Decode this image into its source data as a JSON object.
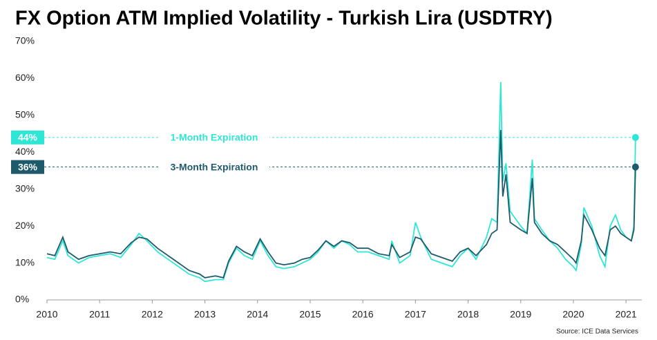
{
  "chart_data": {
    "type": "line",
    "title": "FX Option ATM Implied Volatility - Turkish Lira (USDTRY)",
    "source": "Source:  ICE Data Services",
    "x": [
      2010.0,
      2010.15,
      2010.3,
      2010.4,
      2010.6,
      2010.8,
      2011.0,
      2011.2,
      2011.4,
      2011.6,
      2011.75,
      2011.9,
      2012.1,
      2012.3,
      2012.5,
      2012.7,
      2012.9,
      2013.0,
      2013.2,
      2013.35,
      2013.45,
      2013.6,
      2013.75,
      2013.9,
      2014.05,
      2014.2,
      2014.35,
      2014.5,
      2014.7,
      2014.85,
      2015.0,
      2015.15,
      2015.3,
      2015.45,
      2015.6,
      2015.75,
      2015.9,
      2016.1,
      2016.3,
      2016.5,
      2016.55,
      2016.7,
      2016.9,
      2017.0,
      2017.1,
      2017.3,
      2017.5,
      2017.7,
      2017.85,
      2018.0,
      2018.15,
      2018.35,
      2018.45,
      2018.55,
      2018.62,
      2018.66,
      2018.72,
      2018.8,
      2018.9,
      2019.0,
      2019.12,
      2019.22,
      2019.26,
      2019.4,
      2019.55,
      2019.7,
      2019.85,
      2020.0,
      2020.05,
      2020.15,
      2020.2,
      2020.35,
      2020.5,
      2020.6,
      2020.7,
      2020.8,
      2020.9,
      2021.0,
      2021.1,
      2021.15,
      2021.18
    ],
    "series": [
      {
        "name": "1-Month Expiration",
        "color": "#2ee6d6",
        "end_label": "44%",
        "values": [
          11.5,
          11,
          16,
          12,
          10,
          11.5,
          12,
          12.5,
          11.5,
          15,
          18,
          16,
          13,
          11,
          9,
          7,
          6,
          5,
          5.5,
          5.5,
          10,
          14,
          12,
          11,
          16,
          12,
          9,
          8.5,
          9,
          10,
          11,
          13,
          16,
          14,
          16,
          15,
          13,
          13,
          12,
          11,
          16,
          10,
          12,
          21,
          17,
          11,
          10,
          9,
          12,
          14,
          11,
          17,
          22,
          21,
          59,
          32,
          37,
          24,
          22,
          20,
          18,
          38,
          22,
          19,
          16,
          14,
          11,
          9,
          8,
          15,
          25,
          20,
          12,
          9,
          20,
          23,
          19,
          17,
          16,
          20,
          44
        ]
      },
      {
        "name": "3-Month Expiration",
        "color": "#1f5a6b",
        "end_label": "36%",
        "values": [
          12.5,
          12,
          17,
          13,
          11,
          12,
          12.5,
          13,
          12.5,
          15.5,
          17,
          16.5,
          14,
          12,
          10,
          8,
          7,
          6,
          6.5,
          6,
          10.5,
          14.5,
          13,
          12,
          16.5,
          13,
          10,
          9.5,
          10,
          11,
          11.5,
          13.5,
          16,
          14.5,
          16,
          15.5,
          14,
          14,
          12.5,
          12,
          15,
          11.5,
          13,
          17,
          16.5,
          12.5,
          11.5,
          10.5,
          13,
          14,
          12,
          15,
          18,
          19,
          46,
          28,
          34,
          21,
          20,
          19,
          18,
          33,
          21,
          18,
          16,
          15,
          13,
          11,
          10,
          16,
          23,
          19,
          14,
          12,
          19,
          20,
          18,
          17,
          16,
          19,
          36
        ]
      }
    ],
    "xlim": [
      2010,
      2021.3
    ],
    "xticks": [
      2010,
      2011,
      2012,
      2013,
      2014,
      2015,
      2016,
      2017,
      2018,
      2019,
      2020,
      2021
    ],
    "ylim": [
      0,
      70
    ],
    "yticks": [
      {
        "value": 0,
        "label": "0%"
      },
      {
        "value": 10,
        "label": "10%"
      },
      {
        "value": 20,
        "label": "20%"
      },
      {
        "value": 30,
        "label": "30%"
      },
      {
        "value": 40,
        "label": "40%"
      },
      {
        "value": 50,
        "label": "50%"
      },
      {
        "value": 60,
        "label": "60%"
      },
      {
        "value": 70,
        "label": "70%"
      }
    ]
  }
}
